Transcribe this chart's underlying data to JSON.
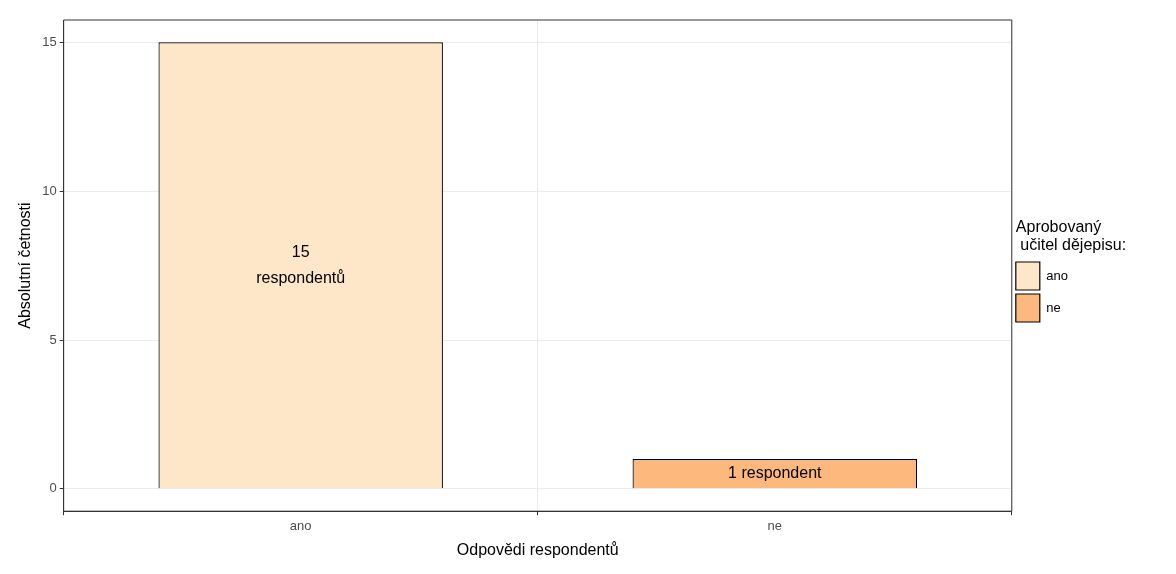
{
  "chart_data": {
    "type": "bar",
    "xlabel": "Odpovědi respondentů",
    "ylabel": "Absolutní četnosti",
    "legend_title": "Aprobovaný\n učitel dějepisu:",
    "categories": [
      "ano",
      "ne"
    ],
    "series": [
      {
        "name": "ano",
        "color": "#fee6c8",
        "values": [
          15,
          null
        ],
        "value_labels": [
          "15\nrespondentů",
          null
        ]
      },
      {
        "name": "ne",
        "color": "#fdb97d",
        "values": [
          null,
          1
        ],
        "value_labels": [
          null,
          "1 respondent"
        ]
      }
    ],
    "ylim": [
      -0.75,
      15.75
    ],
    "yticks": [
      0,
      5,
      10,
      15
    ],
    "grid": true,
    "legend": "right"
  }
}
